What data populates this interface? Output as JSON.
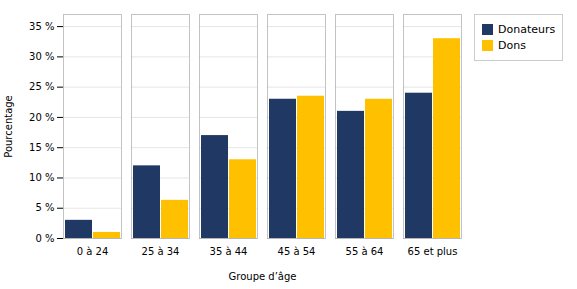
{
  "chart_data": {
    "type": "bar",
    "categories": [
      "0 à 24",
      "25 à 34",
      "35 à 44",
      "45 à 54",
      "55 à 64",
      "65 et plus"
    ],
    "series": [
      {
        "name": "Donateurs",
        "color": "#1F3864",
        "values": [
          3,
          12,
          17,
          23,
          21,
          24
        ]
      },
      {
        "name": "Dons",
        "color": "#FFC000",
        "values": [
          1,
          6.3,
          13,
          23.5,
          23,
          33
        ]
      }
    ],
    "xlabel": "Groupe d’âge",
    "ylabel": "Pourcentage",
    "ylim": [
      0,
      37
    ],
    "yticks": [
      {
        "value": 0,
        "label": "0 %"
      },
      {
        "value": 5,
        "label": "5 %"
      },
      {
        "value": 10,
        "label": "10 %"
      },
      {
        "value": 15,
        "label": "15 %"
      },
      {
        "value": 20,
        "label": "20 %"
      },
      {
        "value": 25,
        "label": "25 %"
      },
      {
        "value": 30,
        "label": "30 %"
      },
      {
        "value": 35,
        "label": "35 %"
      }
    ],
    "grid": true,
    "legend": "right"
  }
}
